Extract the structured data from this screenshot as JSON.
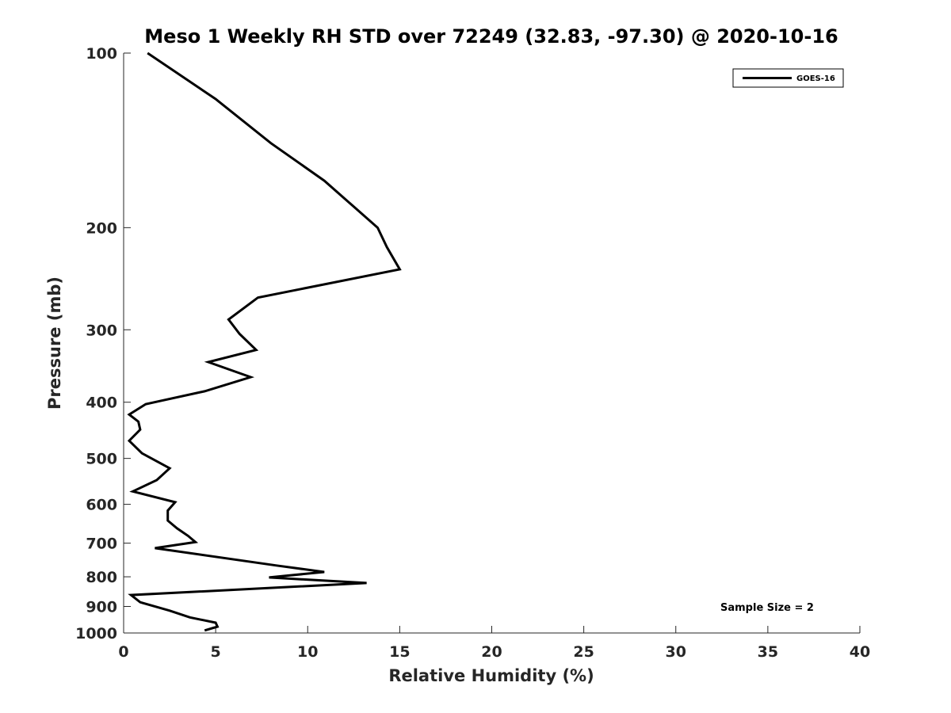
{
  "chart_data": {
    "type": "line",
    "title": "Meso 1 Weekly RH STD over 72249 (32.83, -97.30) @ 2020-10-16",
    "xlabel": "Relative Humidity (%)",
    "ylabel": "Pressure (mb)",
    "xlim": [
      0,
      40
    ],
    "ylim": [
      100,
      1000
    ],
    "y_scale": "log",
    "y_reversed": true,
    "grid": false,
    "legend_position": "top-right",
    "x_ticks": [
      0,
      5,
      10,
      15,
      20,
      25,
      30,
      35,
      40
    ],
    "y_ticks": [
      100,
      200,
      300,
      400,
      500,
      600,
      700,
      800,
      900,
      1000
    ],
    "series": [
      {
        "name": "GOES-16",
        "color": "#000000",
        "x": [
          1.3,
          5.0,
          8.0,
          10.9,
          12.5,
          13.8,
          14.3,
          15.0,
          7.3,
          5.7,
          6.3,
          7.2,
          4.6,
          6.9,
          4.4,
          1.2,
          0.3,
          0.8,
          0.9,
          0.3,
          1.0,
          2.5,
          1.8,
          0.5,
          2.8,
          2.4,
          2.4,
          2.9,
          3.5,
          3.9,
          1.7,
          8.3,
          10.9,
          7.9,
          13.2,
          0.4,
          0.9,
          2.5,
          3.6,
          5.0,
          5.1,
          4.4
        ],
        "y": [
          100,
          120,
          143,
          166,
          184,
          200,
          216,
          236,
          264,
          288,
          305,
          325,
          341,
          362,
          383,
          403,
          420,
          432,
          446,
          466,
          490,
          520,
          545,
          570,
          595,
          615,
          640,
          660,
          680,
          697,
          714,
          765,
          785,
          802,
          820,
          860,
          885,
          915,
          940,
          960,
          975,
          990
        ]
      }
    ],
    "annotation": "Sample Size = 2"
  }
}
